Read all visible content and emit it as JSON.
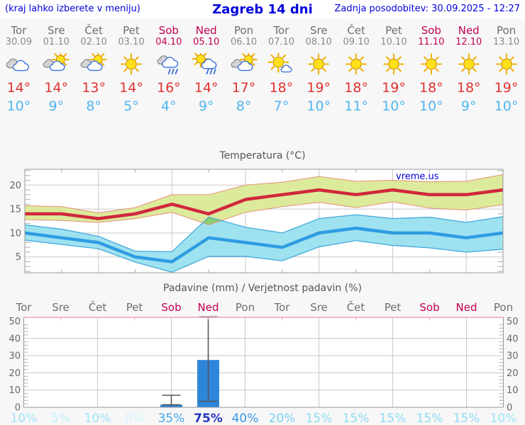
{
  "header": {
    "left_note": "(kraj lahko izberete v meniju)",
    "title": "Zagreb 14 dni",
    "updated": "Zadnja posodobitev: 30.09.2025 - 12:27"
  },
  "colors": {
    "link_blue": "#0000dd",
    "weekday_gray": "#6e6e6e",
    "date_gray": "#8a8a8a",
    "weekend_red": "#c00051",
    "tmax_red": "#e03232",
    "tmin_blue": "#4fb6f0",
    "grid": "#c9c9c9",
    "minor_tick": "#b0b0b0",
    "border": "#999999",
    "axis_label": "#666666",
    "temp_line_red": "#d0283c",
    "temp_band_yellow": "#dcea9b",
    "temp_band_edge": "#e59078",
    "temp_min_line": "#2e9ce2",
    "temp_min_band": "#9fe2ef",
    "temp_min_band_edge": "#3aa5da",
    "overlap_green": "#8ccf70",
    "bar_blue": "#2e86db",
    "whisker": "#555555",
    "precip_top_border": "#f2a0b4"
  },
  "forecast": {
    "days": [
      {
        "name": "Tor",
        "date": "30.09",
        "weekend": false,
        "icon": "cloudy",
        "tmax": "14°",
        "tmin": "10°"
      },
      {
        "name": "Sre",
        "date": "01.10",
        "weekend": false,
        "icon": "partly-cloudy",
        "tmax": "14°",
        "tmin": "9°"
      },
      {
        "name": "Čet",
        "date": "02.10",
        "weekend": false,
        "icon": "partly-cloudy",
        "tmax": "13°",
        "tmin": "8°"
      },
      {
        "name": "Pet",
        "date": "03.10",
        "weekend": false,
        "icon": "sunny",
        "tmax": "14°",
        "tmin": "5°"
      },
      {
        "name": "Sob",
        "date": "04.10",
        "weekend": true,
        "icon": "rain",
        "tmax": "16°",
        "tmin": "4°"
      },
      {
        "name": "Ned",
        "date": "05.10",
        "weekend": true,
        "icon": "sun-rain",
        "tmax": "14°",
        "tmin": "9°"
      },
      {
        "name": "Pon",
        "date": "06.10",
        "weekend": false,
        "icon": "partly-cloudy",
        "tmax": "17°",
        "tmin": "8°"
      },
      {
        "name": "Tor",
        "date": "07.10",
        "weekend": false,
        "icon": "mostly-sunny",
        "tmax": "18°",
        "tmin": "7°"
      },
      {
        "name": "Sre",
        "date": "08.10",
        "weekend": false,
        "icon": "sunny",
        "tmax": "19°",
        "tmin": "10°"
      },
      {
        "name": "Čet",
        "date": "09.10",
        "weekend": false,
        "icon": "sunny",
        "tmax": "18°",
        "tmin": "11°"
      },
      {
        "name": "Pet",
        "date": "10.10",
        "weekend": false,
        "icon": "sunny",
        "tmax": "19°",
        "tmin": "10°"
      },
      {
        "name": "Sob",
        "date": "11.10",
        "weekend": true,
        "icon": "sunny",
        "tmax": "18°",
        "tmin": "10°"
      },
      {
        "name": "Ned",
        "date": "12.10",
        "weekend": true,
        "icon": "sunny",
        "tmax": "18°",
        "tmin": "9°"
      },
      {
        "name": "Pon",
        "date": "13.10",
        "weekend": false,
        "icon": "sunny",
        "tmax": "19°",
        "tmin": "10°"
      }
    ]
  },
  "chart_data": [
    {
      "type": "line",
      "title": "Temperatura (°C)",
      "watermark": "vreme.us",
      "categories": [
        "Tor",
        "Sre",
        "Čet",
        "Pet",
        "Sob",
        "Ned",
        "Pon",
        "Tor",
        "Sre",
        "Čet",
        "Pet",
        "Sob",
        "Ned",
        "Pon"
      ],
      "ylim": [
        1.7,
        23.3
      ],
      "yticks": [
        5,
        10,
        15,
        20
      ],
      "grid": true,
      "series": [
        {
          "name": "max-temp",
          "values": [
            14,
            14,
            13,
            14,
            16,
            14,
            17,
            18,
            19,
            18,
            19,
            18,
            18,
            19
          ]
        },
        {
          "name": "max-temp-band-upper",
          "values": [
            15.7,
            15.5,
            14.2,
            15.3,
            18,
            18,
            20,
            20.6,
            21.8,
            20.8,
            21,
            20.7,
            20.8,
            22.2
          ]
        },
        {
          "name": "max-temp-band-lower",
          "values": [
            12.8,
            12.6,
            12.2,
            13,
            14.3,
            11.7,
            14.3,
            15.5,
            16.4,
            15.3,
            16.5,
            15.2,
            14.8,
            15.9
          ]
        },
        {
          "name": "min-temp",
          "values": [
            10,
            9,
            8,
            5,
            4,
            9,
            8,
            7,
            10,
            11,
            10,
            10,
            9,
            10
          ]
        },
        {
          "name": "min-temp-band-upper",
          "values": [
            11.7,
            10.8,
            9.3,
            6.2,
            6.1,
            13.3,
            11.2,
            10,
            13,
            13.8,
            13,
            13.3,
            12.2,
            13.4
          ]
        },
        {
          "name": "min-temp-band-lower",
          "values": [
            8.5,
            7.6,
            6.7,
            3.9,
            1.8,
            5.1,
            5.1,
            4.2,
            7.1,
            8.4,
            7.4,
            6.9,
            6,
            6.6
          ]
        }
      ]
    },
    {
      "type": "bar",
      "title": "Padavine (mm) / Verjetnost padavin (%)",
      "categories": [
        "Tor",
        "Sre",
        "Čet",
        "Pet",
        "Sob",
        "Ned",
        "Pon",
        "Tor",
        "Sre",
        "Čet",
        "Pet",
        "Sob",
        "Ned",
        "Pon"
      ],
      "weekend_indices": [
        4,
        5,
        11,
        12
      ],
      "ylim": [
        0,
        50
      ],
      "yticks": [
        0,
        10,
        20,
        30,
        40,
        50
      ],
      "values_mm": [
        0,
        0,
        0,
        0,
        1.5,
        27.5,
        0,
        0,
        0,
        0,
        0,
        0,
        0,
        0
      ],
      "whiskers": [
        {
          "index": 4,
          "low": 1.5,
          "high": 7
        },
        {
          "index": 5,
          "low": 3.5,
          "high": 52.5
        }
      ],
      "probability": [
        {
          "label": "10%",
          "color": "#9fe3f8"
        },
        {
          "label": "5%",
          "color": "#bfeffb"
        },
        {
          "label": "10%",
          "color": "#9fe3f8"
        },
        {
          "label": "0%",
          "color": "#d2f5fd"
        },
        {
          "label": "35%",
          "color": "#46a6e9"
        },
        {
          "label": "75%",
          "color": "#2434bd"
        },
        {
          "label": "40%",
          "color": "#3b97e2"
        },
        {
          "label": "20%",
          "color": "#79d0f2"
        },
        {
          "label": "15%",
          "color": "#8edbf5"
        },
        {
          "label": "15%",
          "color": "#8edbf5"
        },
        {
          "label": "15%",
          "color": "#8edbf5"
        },
        {
          "label": "15%",
          "color": "#8edbf5"
        },
        {
          "label": "15%",
          "color": "#8edbf5"
        },
        {
          "label": "10%",
          "color": "#9fe3f8"
        }
      ]
    }
  ]
}
